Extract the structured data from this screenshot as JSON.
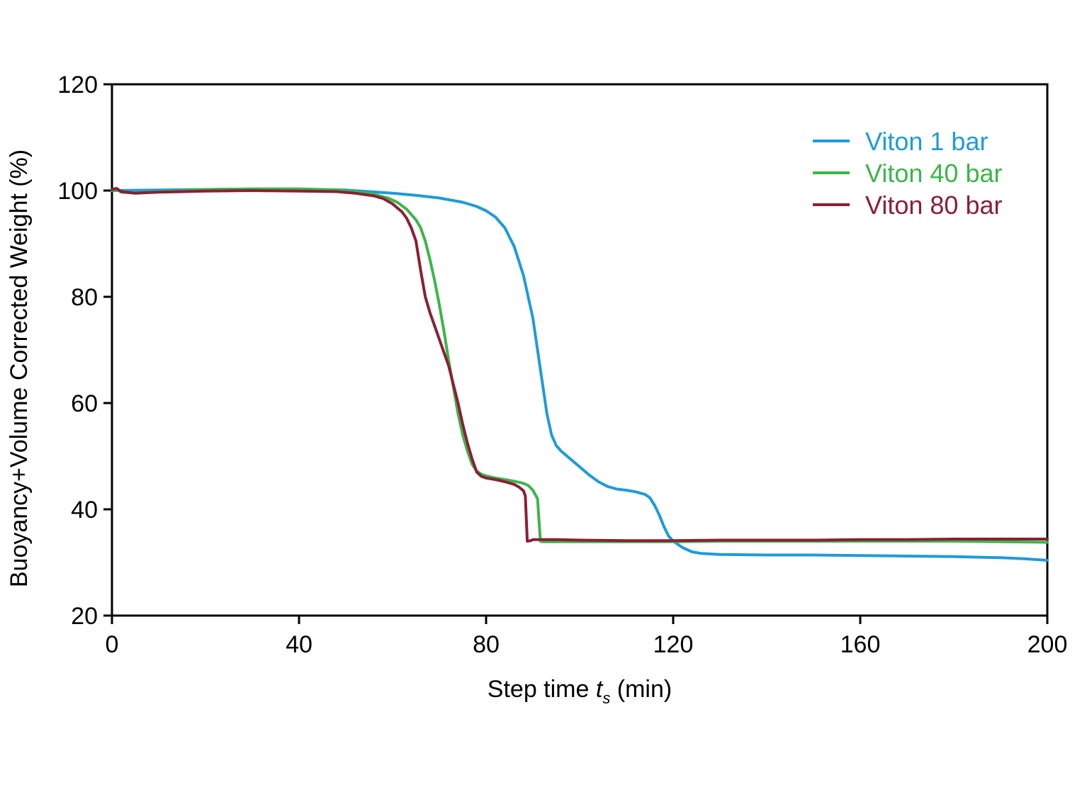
{
  "chart_data": {
    "type": "line",
    "title": "",
    "xlabel": {
      "prefix": "Step time ",
      "var": "t",
      "sub": "s",
      "suffix": " (min)"
    },
    "ylabel": "Buoyancy+Volume Corrected Weight (%)",
    "xlim": [
      0,
      200
    ],
    "ylim": [
      20,
      120
    ],
    "xticks": [
      "0",
      "40",
      "80",
      "120",
      "160",
      "200"
    ],
    "yticks": [
      "20",
      "40",
      "60",
      "80",
      "100",
      "120"
    ],
    "grid": false,
    "legend_position": "top-right",
    "series": [
      {
        "name": "Viton 1 bar",
        "color": "#1f9bd7",
        "points": [
          [
            0,
            100
          ],
          [
            10,
            100.1
          ],
          [
            20,
            100.2
          ],
          [
            30,
            100.3
          ],
          [
            40,
            100.3
          ],
          [
            50,
            100.1
          ],
          [
            55,
            99.8
          ],
          [
            60,
            99.5
          ],
          [
            65,
            99.1
          ],
          [
            70,
            98.6
          ],
          [
            75,
            97.8
          ],
          [
            78,
            97.0
          ],
          [
            80,
            96.2
          ],
          [
            82,
            95.0
          ],
          [
            84,
            93.0
          ],
          [
            86,
            89.5
          ],
          [
            88,
            84.0
          ],
          [
            90,
            76.0
          ],
          [
            91,
            70.0
          ],
          [
            92,
            64.0
          ],
          [
            93,
            58.0
          ],
          [
            94,
            54.0
          ],
          [
            95,
            52.0
          ],
          [
            96,
            51.0
          ],
          [
            98,
            49.5
          ],
          [
            100,
            48.0
          ],
          [
            102,
            46.5
          ],
          [
            104,
            45.2
          ],
          [
            106,
            44.3
          ],
          [
            108,
            43.8
          ],
          [
            110,
            43.6
          ],
          [
            112,
            43.3
          ],
          [
            114,
            42.8
          ],
          [
            115,
            42.2
          ],
          [
            116,
            40.8
          ],
          [
            117,
            39.0
          ],
          [
            118,
            36.8
          ],
          [
            119,
            35.0
          ],
          [
            120,
            34.0
          ],
          [
            122,
            32.8
          ],
          [
            124,
            32.0
          ],
          [
            126,
            31.7
          ],
          [
            130,
            31.5
          ],
          [
            140,
            31.4
          ],
          [
            150,
            31.4
          ],
          [
            160,
            31.3
          ],
          [
            170,
            31.2
          ],
          [
            180,
            31.1
          ],
          [
            190,
            30.9
          ],
          [
            195,
            30.7
          ],
          [
            200,
            30.4
          ]
        ]
      },
      {
        "name": "Viton 40 bar",
        "color": "#3db54a",
        "points": [
          [
            0,
            100
          ],
          [
            1,
            100.3
          ],
          [
            2,
            99.7
          ],
          [
            5,
            99.5
          ],
          [
            10,
            99.8
          ],
          [
            20,
            100.2
          ],
          [
            30,
            100.3
          ],
          [
            40,
            100.3
          ],
          [
            48,
            100.1
          ],
          [
            52,
            99.8
          ],
          [
            56,
            99.3
          ],
          [
            59,
            98.6
          ],
          [
            61,
            97.8
          ],
          [
            63,
            96.5
          ],
          [
            65,
            94.5
          ],
          [
            66,
            93.0
          ],
          [
            67,
            90.5
          ],
          [
            68,
            87.0
          ],
          [
            69,
            83.0
          ],
          [
            70,
            78.5
          ],
          [
            71,
            73.5
          ],
          [
            72,
            68.0
          ],
          [
            73,
            63.0
          ],
          [
            74,
            58.0
          ],
          [
            75,
            54.0
          ],
          [
            76,
            51.0
          ],
          [
            77,
            48.5
          ],
          [
            78,
            47.2
          ],
          [
            79,
            46.6
          ],
          [
            80,
            46.3
          ],
          [
            82,
            45.9
          ],
          [
            84,
            45.6
          ],
          [
            86,
            45.3
          ],
          [
            88,
            44.9
          ],
          [
            89,
            44.5
          ],
          [
            90,
            43.6
          ],
          [
            91,
            42.0
          ],
          [
            91.3,
            38.0
          ],
          [
            91.6,
            34.0
          ],
          [
            92,
            33.9
          ],
          [
            100,
            33.9
          ],
          [
            110,
            33.9
          ],
          [
            120,
            33.9
          ],
          [
            130,
            34.0
          ],
          [
            140,
            34.0
          ],
          [
            150,
            34.0
          ],
          [
            160,
            34.0
          ],
          [
            170,
            34.0
          ],
          [
            180,
            34.0
          ],
          [
            190,
            33.9
          ],
          [
            200,
            33.8
          ]
        ]
      },
      {
        "name": "Viton 80 bar",
        "color": "#8b1f35",
        "points": [
          [
            0,
            100.2
          ],
          [
            1,
            100.4
          ],
          [
            2,
            99.8
          ],
          [
            5,
            99.5
          ],
          [
            10,
            99.7
          ],
          [
            20,
            99.9
          ],
          [
            30,
            100.0
          ],
          [
            40,
            99.9
          ],
          [
            48,
            99.8
          ],
          [
            52,
            99.5
          ],
          [
            56,
            99.0
          ],
          [
            58,
            98.5
          ],
          [
            60,
            97.5
          ],
          [
            62,
            96.0
          ],
          [
            63,
            94.8
          ],
          [
            64,
            93.0
          ],
          [
            65,
            90.5
          ],
          [
            66,
            85.0
          ],
          [
            67,
            80.0
          ],
          [
            68,
            77.0
          ],
          [
            69,
            74.5
          ],
          [
            70,
            72.0
          ],
          [
            71,
            69.5
          ],
          [
            72,
            67.0
          ],
          [
            73,
            63.5
          ],
          [
            74,
            60.0
          ],
          [
            75,
            56.0
          ],
          [
            76,
            52.5
          ],
          [
            77,
            49.5
          ],
          [
            78,
            47.0
          ],
          [
            79,
            46.2
          ],
          [
            80,
            45.9
          ],
          [
            82,
            45.6
          ],
          [
            84,
            45.2
          ],
          [
            86,
            44.7
          ],
          [
            87,
            44.2
          ],
          [
            88,
            43.5
          ],
          [
            88.4,
            42.5
          ],
          [
            88.6,
            38.0
          ],
          [
            88.8,
            34.0
          ],
          [
            89.5,
            34.1
          ],
          [
            90,
            34.3
          ],
          [
            95,
            34.3
          ],
          [
            100,
            34.2
          ],
          [
            110,
            34.1
          ],
          [
            120,
            34.1
          ],
          [
            130,
            34.2
          ],
          [
            140,
            34.2
          ],
          [
            150,
            34.2
          ],
          [
            160,
            34.3
          ],
          [
            170,
            34.3
          ],
          [
            180,
            34.4
          ],
          [
            190,
            34.4
          ],
          [
            200,
            34.4
          ]
        ]
      }
    ]
  }
}
